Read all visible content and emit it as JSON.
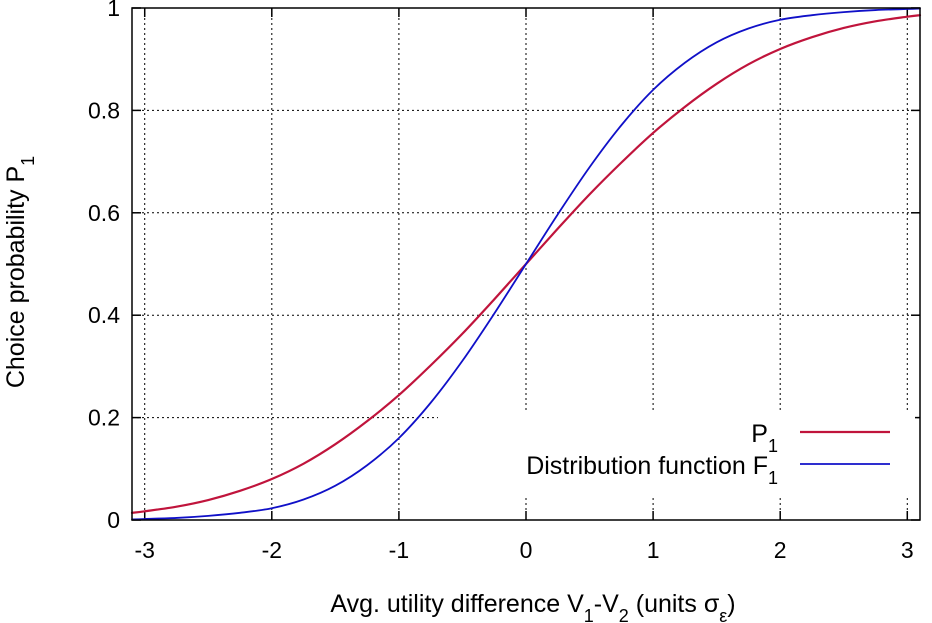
{
  "chart_data": {
    "type": "line",
    "title": "",
    "xlabel": {
      "prefix": "Avg. utility difference V",
      "sub1": "1",
      "mid": "-V",
      "sub2": "2",
      "suffix": " (units σ",
      "sub3": "ε",
      "end": ")"
    },
    "ylabel": {
      "text": "Choice probability P",
      "sub": "1"
    },
    "xlim": [
      -3.1,
      3.1
    ],
    "ylim": [
      0,
      1
    ],
    "xticks": [
      -3,
      -2,
      -1,
      0,
      1,
      2,
      3
    ],
    "xtick_labels": [
      "-3",
      "-2",
      "-1",
      "0",
      "1",
      "2",
      "3"
    ],
    "yticks": [
      0,
      0.2,
      0.4,
      0.6,
      0.8,
      1
    ],
    "ytick_labels": [
      "0",
      "0.2",
      "0.4",
      "0.6",
      "0.8",
      "1"
    ],
    "grid": true,
    "legend_position": "bottom-right",
    "x": [
      -3.1,
      -3.0,
      -2.75,
      -2.5,
      -2.25,
      -2.0,
      -1.75,
      -1.5,
      -1.25,
      -1.0,
      -0.75,
      -0.5,
      -0.25,
      0.0,
      0.25,
      0.5,
      0.75,
      1.0,
      1.25,
      1.5,
      1.75,
      2.0,
      2.25,
      2.5,
      2.75,
      3.0,
      3.1
    ],
    "series": [
      {
        "name": "P",
        "name_sub": "1",
        "color": "#c0143c",
        "values": [
          0.014,
          0.017,
          0.026,
          0.039,
          0.057,
          0.08,
          0.11,
          0.148,
          0.193,
          0.244,
          0.302,
          0.364,
          0.431,
          0.5,
          0.569,
          0.636,
          0.698,
          0.756,
          0.807,
          0.852,
          0.89,
          0.92,
          0.943,
          0.961,
          0.974,
          0.983,
          0.986
        ]
      },
      {
        "name": "Distribution function F",
        "name_sub": "1",
        "color": "#1010c8",
        "values": [
          0.001,
          0.002,
          0.004,
          0.008,
          0.014,
          0.023,
          0.04,
          0.067,
          0.107,
          0.16,
          0.229,
          0.311,
          0.403,
          0.5,
          0.597,
          0.689,
          0.771,
          0.84,
          0.893,
          0.933,
          0.96,
          0.977,
          0.986,
          0.992,
          0.996,
          0.998,
          0.999
        ]
      }
    ]
  }
}
